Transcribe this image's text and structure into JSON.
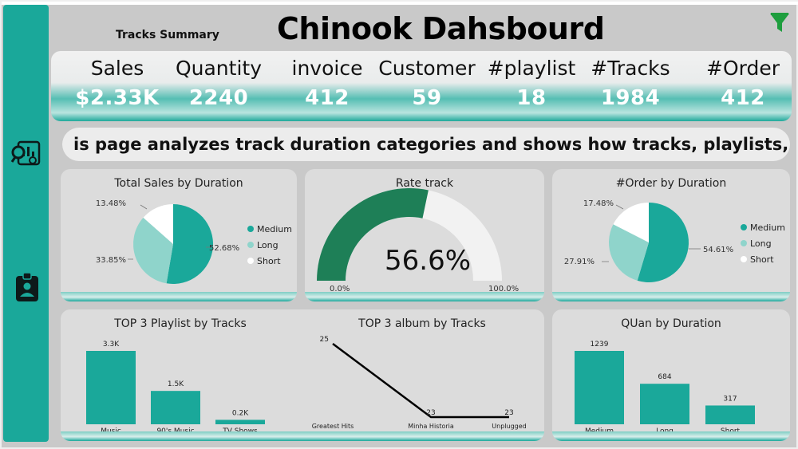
{
  "header": {
    "title": "Chinook Dahsbourd",
    "subtitle": "Tracks Summary"
  },
  "kpis": [
    {
      "label": "Sales",
      "value": "$2.33K"
    },
    {
      "label": "Quantity",
      "value": "2240"
    },
    {
      "label": "invoice",
      "value": "412"
    },
    {
      "label": "Customer",
      "value": "59"
    },
    {
      "label": "#playlist",
      "value": "18"
    },
    {
      "label": "#Tracks",
      "value": "1984"
    },
    {
      "label": "#Order",
      "value": "412"
    }
  ],
  "ticker": {
    "text": "is page analyzes track duration categories and shows how tracks, playlists, and or"
  },
  "nav": {
    "icons": [
      "analytics-icon",
      "id-badge-icon",
      "filter-icon"
    ]
  },
  "colors": {
    "teal": "#1aa89a",
    "light_teal": "#8fd4cb",
    "white_slice": "#ffffff",
    "gauge_fill": "#1e7f57",
    "gauge_bg": "#f2f2f2",
    "bar": "#1aa89a",
    "line": "#000000"
  },
  "chart_data": [
    {
      "id": "sales-by-duration",
      "type": "pie",
      "title": "Total Sales by Duration",
      "slices": [
        {
          "label": "Medium",
          "value": 52.68,
          "text": "52.68%"
        },
        {
          "label": "Long",
          "value": 33.85,
          "text": "33.85%"
        },
        {
          "label": "Short",
          "value": 13.48,
          "text": "13.48%"
        }
      ],
      "legend": "right"
    },
    {
      "id": "rate-track",
      "type": "gauge",
      "title": "Rate track",
      "value": 56.6,
      "value_text": "56.6%",
      "min_text": "0.0%",
      "max_text": "100.0%",
      "min": 0,
      "max": 100
    },
    {
      "id": "order-by-duration",
      "type": "pie",
      "title": "#Order by Duration",
      "slices": [
        {
          "label": "Medium",
          "value": 54.61,
          "text": "54.61%"
        },
        {
          "label": "Long",
          "value": 27.91,
          "text": "27.91%"
        },
        {
          "label": "Short",
          "value": 17.48,
          "text": "17.48%"
        }
      ],
      "legend": "right"
    },
    {
      "id": "top3-playlist",
      "type": "bar",
      "title": "TOP 3 Playlist by Tracks",
      "categories": [
        "Music",
        "90's Music",
        "TV Shows"
      ],
      "values": [
        3300,
        1500,
        200
      ],
      "labels": [
        "3.3K",
        "1.5K",
        "0.2K"
      ],
      "ylim": [
        0,
        3300
      ]
    },
    {
      "id": "top3-album",
      "type": "line",
      "title": "TOP 3 album by Tracks",
      "categories": [
        "Greatest Hits",
        "Minha Historia",
        "Unplugged"
      ],
      "values": [
        25,
        23,
        23
      ],
      "labels": [
        "25",
        "23",
        "23"
      ],
      "ylim": [
        23,
        25
      ]
    },
    {
      "id": "quan-by-duration",
      "type": "bar",
      "title": "QUan by Duration",
      "categories": [
        "Medium",
        "Long",
        "Short"
      ],
      "values": [
        1239,
        684,
        317
      ],
      "labels": [
        "1239",
        "684",
        "317"
      ],
      "ylim": [
        0,
        1239
      ]
    }
  ]
}
